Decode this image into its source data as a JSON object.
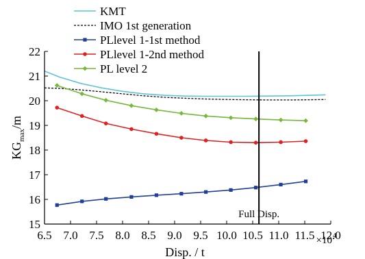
{
  "chart_data": {
    "type": "line",
    "title": "",
    "xlabel": "Disp. / t",
    "ylabel_main": "KG",
    "ylabel_sub": "max",
    "ylabel_unit": "/m",
    "x_scale_note": "×10",
    "x_scale_exp": "4",
    "xlim": [
      6.5,
      12.0
    ],
    "ylim": [
      15,
      22
    ],
    "x_ticks": [
      "6.5",
      "7.0",
      "7.5",
      "8.0",
      "8.5",
      "9.0",
      "9.5",
      "10.0",
      "10.5",
      "11.0",
      "11.5",
      "12.0"
    ],
    "y_ticks": [
      "15",
      "16",
      "17",
      "18",
      "19",
      "20",
      "21",
      "22"
    ],
    "grid": false,
    "legend_position": "top-left",
    "series": [
      {
        "name": "KMT",
        "color": "#5fc2d6",
        "style": "solid",
        "marker": "none",
        "x": [
          6.5,
          6.8,
          7.2,
          7.6,
          8.0,
          8.4,
          8.8,
          9.2,
          9.6,
          10.0,
          10.4,
          10.8,
          11.2,
          11.6,
          11.9
        ],
        "y": [
          21.2,
          20.95,
          20.7,
          20.52,
          20.38,
          20.28,
          20.22,
          20.19,
          20.18,
          20.18,
          20.18,
          20.19,
          20.2,
          20.22,
          20.24
        ]
      },
      {
        "name": "IMO 1st generation",
        "color": "#000000",
        "style": "dashed",
        "marker": "none",
        "x": [
          6.5,
          6.8,
          7.2,
          7.6,
          8.0,
          8.4,
          8.8,
          9.2,
          9.6,
          10.0,
          10.4,
          10.8,
          11.2,
          11.6,
          11.9
        ],
        "y": [
          20.52,
          20.5,
          20.44,
          20.36,
          20.28,
          20.2,
          20.14,
          20.1,
          20.07,
          20.05,
          20.04,
          20.03,
          20.03,
          20.04,
          20.05
        ]
      },
      {
        "name": "PLlevel 1-1st method",
        "color": "#1f3f9a",
        "style": "solid",
        "marker": "square",
        "x": [
          6.74,
          7.22,
          7.68,
          8.17,
          8.65,
          9.13,
          9.6,
          10.08,
          10.56,
          11.04,
          11.52
        ],
        "y": [
          15.77,
          15.92,
          16.02,
          16.1,
          16.17,
          16.23,
          16.3,
          16.38,
          16.48,
          16.6,
          16.73
        ]
      },
      {
        "name": "PLlevel 1-2nd method",
        "color": "#e02020",
        "style": "solid",
        "marker": "circle",
        "x": [
          6.74,
          7.22,
          7.68,
          8.17,
          8.65,
          9.13,
          9.6,
          10.08,
          10.56,
          11.04,
          11.52
        ],
        "y": [
          19.72,
          19.38,
          19.08,
          18.85,
          18.66,
          18.5,
          18.39,
          18.32,
          18.3,
          18.32,
          18.36
        ]
      },
      {
        "name": "PL level 2",
        "color": "#76b83a",
        "style": "solid",
        "marker": "diamond",
        "x": [
          6.74,
          7.22,
          7.68,
          8.17,
          8.65,
          9.13,
          9.6,
          10.08,
          10.56,
          11.04,
          11.52
        ],
        "y": [
          20.62,
          20.28,
          20.02,
          19.8,
          19.63,
          19.49,
          19.38,
          19.31,
          19.26,
          19.22,
          19.19
        ]
      }
    ],
    "reference_line": {
      "x": 10.62,
      "label": "Full Disp.",
      "color": "#000000"
    }
  }
}
